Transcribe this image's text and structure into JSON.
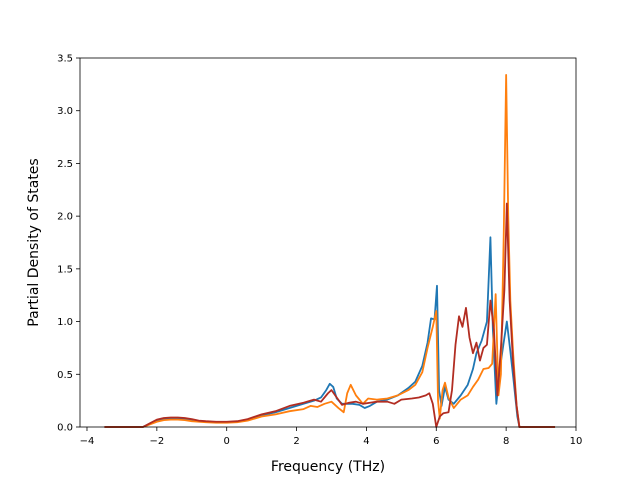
{
  "chart_data": {
    "type": "line",
    "xlabel": "Frequency (THz)",
    "ylabel": "Partial Density of States",
    "xlim": [
      -4.2,
      10
    ],
    "ylim": [
      0,
      3.5
    ],
    "xticks": [
      -4,
      -2,
      0,
      2,
      4,
      6,
      8,
      10
    ],
    "xtick_labels": [
      "−4",
      "−2",
      "0",
      "2",
      "4",
      "6",
      "8",
      "10"
    ],
    "yticks": [
      0.0,
      0.5,
      1.0,
      1.5,
      2.0,
      2.5,
      3.0,
      3.5
    ],
    "ytick_labels": [
      "0.0",
      "0.5",
      "1.0",
      "1.5",
      "2.0",
      "2.5",
      "3.0",
      "3.5"
    ],
    "grid": false,
    "series": [
      {
        "color": "#1f77b4",
        "points": [
          [
            -3.5,
            0
          ],
          [
            -2.4,
            0
          ],
          [
            -2.2,
            0.03
          ],
          [
            -2.0,
            0.06
          ],
          [
            -1.8,
            0.075
          ],
          [
            -1.6,
            0.08
          ],
          [
            -1.4,
            0.08
          ],
          [
            -1.2,
            0.075
          ],
          [
            -1.0,
            0.065
          ],
          [
            -0.8,
            0.055
          ],
          [
            -0.6,
            0.05
          ],
          [
            -0.3,
            0.045
          ],
          [
            0,
            0.045
          ],
          [
            0.3,
            0.05
          ],
          [
            0.6,
            0.07
          ],
          [
            1.0,
            0.11
          ],
          [
            1.4,
            0.14
          ],
          [
            1.8,
            0.18
          ],
          [
            2.2,
            0.22
          ],
          [
            2.5,
            0.25
          ],
          [
            2.7,
            0.28
          ],
          [
            2.85,
            0.35
          ],
          [
            2.95,
            0.41
          ],
          [
            3.05,
            0.38
          ],
          [
            3.15,
            0.27
          ],
          [
            3.3,
            0.22
          ],
          [
            3.6,
            0.22
          ],
          [
            3.8,
            0.21
          ],
          [
            3.95,
            0.18
          ],
          [
            4.1,
            0.2
          ],
          [
            4.3,
            0.24
          ],
          [
            4.6,
            0.26
          ],
          [
            4.9,
            0.3
          ],
          [
            5.2,
            0.37
          ],
          [
            5.4,
            0.43
          ],
          [
            5.6,
            0.58
          ],
          [
            5.75,
            0.8
          ],
          [
            5.85,
            1.03
          ],
          [
            5.95,
            1.02
          ],
          [
            6.02,
            1.34
          ],
          [
            6.08,
            0.35
          ],
          [
            6.15,
            0.2
          ],
          [
            6.25,
            0.38
          ],
          [
            6.35,
            0.26
          ],
          [
            6.5,
            0.22
          ],
          [
            6.7,
            0.3
          ],
          [
            6.9,
            0.4
          ],
          [
            7.05,
            0.55
          ],
          [
            7.15,
            0.7
          ],
          [
            7.3,
            0.82
          ],
          [
            7.45,
            1.0
          ],
          [
            7.55,
            1.8
          ],
          [
            7.62,
            0.92
          ],
          [
            7.72,
            0.22
          ],
          [
            7.82,
            0.55
          ],
          [
            7.92,
            0.78
          ],
          [
            8.02,
            1.0
          ],
          [
            8.12,
            0.72
          ],
          [
            8.22,
            0.42
          ],
          [
            8.32,
            0.1
          ],
          [
            8.38,
            0
          ],
          [
            9.4,
            0
          ]
        ]
      },
      {
        "color": "#ff7f0e",
        "points": [
          [
            -3.5,
            0
          ],
          [
            -2.4,
            0
          ],
          [
            -2.2,
            0.025
          ],
          [
            -2.0,
            0.05
          ],
          [
            -1.8,
            0.065
          ],
          [
            -1.6,
            0.07
          ],
          [
            -1.4,
            0.07
          ],
          [
            -1.2,
            0.065
          ],
          [
            -1.0,
            0.055
          ],
          [
            -0.8,
            0.05
          ],
          [
            -0.6,
            0.045
          ],
          [
            -0.3,
            0.04
          ],
          [
            0,
            0.04
          ],
          [
            0.3,
            0.045
          ],
          [
            0.6,
            0.06
          ],
          [
            1.0,
            0.1
          ],
          [
            1.4,
            0.12
          ],
          [
            1.8,
            0.15
          ],
          [
            2.2,
            0.17
          ],
          [
            2.4,
            0.2
          ],
          [
            2.6,
            0.19
          ],
          [
            2.8,
            0.22
          ],
          [
            3.0,
            0.24
          ],
          [
            3.2,
            0.18
          ],
          [
            3.35,
            0.14
          ],
          [
            3.45,
            0.32
          ],
          [
            3.55,
            0.4
          ],
          [
            3.7,
            0.3
          ],
          [
            3.9,
            0.22
          ],
          [
            4.05,
            0.27
          ],
          [
            4.3,
            0.26
          ],
          [
            4.6,
            0.27
          ],
          [
            4.9,
            0.3
          ],
          [
            5.2,
            0.35
          ],
          [
            5.4,
            0.4
          ],
          [
            5.6,
            0.52
          ],
          [
            5.75,
            0.75
          ],
          [
            5.9,
            0.95
          ],
          [
            6.0,
            1.1
          ],
          [
            6.05,
            0.25
          ],
          [
            6.1,
            0.08
          ],
          [
            6.18,
            0.35
          ],
          [
            6.25,
            0.42
          ],
          [
            6.35,
            0.28
          ],
          [
            6.5,
            0.18
          ],
          [
            6.7,
            0.26
          ],
          [
            6.9,
            0.3
          ],
          [
            7.05,
            0.38
          ],
          [
            7.2,
            0.45
          ],
          [
            7.35,
            0.55
          ],
          [
            7.5,
            0.56
          ],
          [
            7.6,
            0.6
          ],
          [
            7.7,
            1.26
          ],
          [
            7.78,
            0.3
          ],
          [
            7.85,
            0.5
          ],
          [
            7.93,
            1.8
          ],
          [
            8.0,
            3.34
          ],
          [
            8.06,
            2.0
          ],
          [
            8.12,
            1.2
          ],
          [
            8.2,
            0.7
          ],
          [
            8.3,
            0.2
          ],
          [
            8.38,
            0
          ],
          [
            9.4,
            0
          ]
        ]
      },
      {
        "color": "#b22d22",
        "points": [
          [
            -3.5,
            0
          ],
          [
            -2.4,
            0
          ],
          [
            -2.2,
            0.035
          ],
          [
            -2.0,
            0.07
          ],
          [
            -1.8,
            0.085
          ],
          [
            -1.6,
            0.09
          ],
          [
            -1.4,
            0.09
          ],
          [
            -1.2,
            0.085
          ],
          [
            -1.0,
            0.075
          ],
          [
            -0.8,
            0.06
          ],
          [
            -0.6,
            0.055
          ],
          [
            -0.3,
            0.05
          ],
          [
            0,
            0.05
          ],
          [
            0.3,
            0.055
          ],
          [
            0.6,
            0.075
          ],
          [
            1.0,
            0.12
          ],
          [
            1.4,
            0.15
          ],
          [
            1.8,
            0.2
          ],
          [
            2.2,
            0.23
          ],
          [
            2.5,
            0.26
          ],
          [
            2.7,
            0.24
          ],
          [
            2.9,
            0.32
          ],
          [
            3.0,
            0.35
          ],
          [
            3.15,
            0.28
          ],
          [
            3.3,
            0.21
          ],
          [
            3.5,
            0.23
          ],
          [
            3.7,
            0.24
          ],
          [
            3.9,
            0.22
          ],
          [
            4.1,
            0.23
          ],
          [
            4.3,
            0.24
          ],
          [
            4.6,
            0.24
          ],
          [
            4.8,
            0.22
          ],
          [
            5.0,
            0.26
          ],
          [
            5.3,
            0.27
          ],
          [
            5.5,
            0.28
          ],
          [
            5.7,
            0.3
          ],
          [
            5.8,
            0.32
          ],
          [
            5.9,
            0.22
          ],
          [
            6.0,
            0.0
          ],
          [
            6.1,
            0.1
          ],
          [
            6.2,
            0.13
          ],
          [
            6.35,
            0.14
          ],
          [
            6.45,
            0.35
          ],
          [
            6.55,
            0.78
          ],
          [
            6.65,
            1.05
          ],
          [
            6.75,
            0.95
          ],
          [
            6.85,
            1.13
          ],
          [
            6.95,
            0.85
          ],
          [
            7.05,
            0.7
          ],
          [
            7.15,
            0.8
          ],
          [
            7.25,
            0.63
          ],
          [
            7.35,
            0.75
          ],
          [
            7.45,
            0.78
          ],
          [
            7.55,
            1.2
          ],
          [
            7.65,
            0.92
          ],
          [
            7.75,
            0.3
          ],
          [
            7.85,
            0.75
          ],
          [
            7.95,
            1.3
          ],
          [
            8.02,
            2.12
          ],
          [
            8.1,
            1.2
          ],
          [
            8.2,
            0.6
          ],
          [
            8.3,
            0.2
          ],
          [
            8.38,
            0
          ],
          [
            9.4,
            0
          ]
        ]
      }
    ]
  }
}
